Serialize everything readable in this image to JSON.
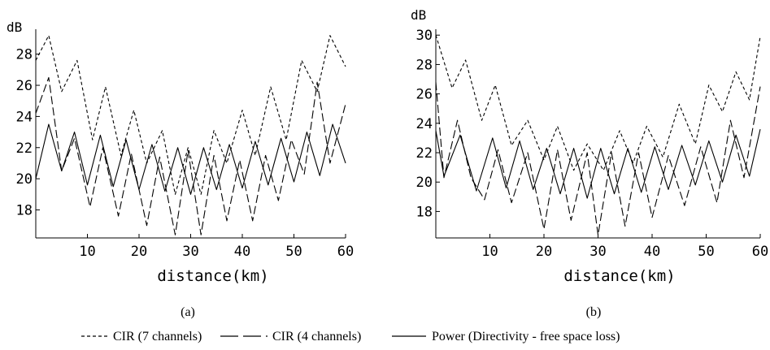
{
  "legend": [
    {
      "label": "CIR (7 channels)",
      "style": "dashed-short"
    },
    {
      "label": "CIR (4 channels)",
      "style": "dashed-long"
    },
    {
      "label": "Power  (Directivity - free space loss)",
      "style": "solid"
    }
  ],
  "chart_data": [
    {
      "type": "line",
      "panel_label": "(a)",
      "ylabel": "dB",
      "xlabel": "distance(km)",
      "xlim": [
        0,
        60
      ],
      "ylim": [
        16.2,
        29.6
      ],
      "xticks": [
        10,
        20,
        30,
        40,
        50,
        60
      ],
      "yticks": [
        18,
        20,
        22,
        24,
        26,
        28
      ],
      "series": [
        {
          "name": "CIR (7 channels)",
          "style": "dashed-short",
          "x": [
            0,
            2.5,
            5,
            8,
            11,
            13.5,
            16.5,
            19,
            21.5,
            24.5,
            27,
            29.5,
            32,
            34.5,
            37,
            40,
            42.5,
            45.5,
            48.5,
            51.5,
            54.5,
            57,
            60
          ],
          "y": [
            27.6,
            29.2,
            25.6,
            27.6,
            22.5,
            25.9,
            21.5,
            24.4,
            21.0,
            23.1,
            19.0,
            22.0,
            19.0,
            23.1,
            21.0,
            24.4,
            21.5,
            25.9,
            22.5,
            27.6,
            25.6,
            29.2,
            27.2
          ]
        },
        {
          "name": "CIR (4 channels)",
          "style": "dashed-long",
          "x": [
            0,
            2.5,
            5,
            7.5,
            10.5,
            13,
            16,
            18.5,
            21.5,
            24,
            27,
            29.5,
            32,
            34.5,
            37,
            39.5,
            42,
            44.5,
            47,
            49.5,
            52,
            54.5,
            57,
            60
          ],
          "y": [
            24.2,
            26.5,
            20.5,
            22.6,
            18.2,
            22.0,
            17.6,
            21.6,
            17.0,
            21.4,
            16.4,
            21.8,
            16.4,
            21.5,
            17.3,
            21.2,
            17.3,
            21.5,
            18.6,
            22.5,
            20.3,
            26.2,
            21.0,
            24.8
          ]
        },
        {
          "name": "Power  (Directivity - free space loss)",
          "style": "solid",
          "x": [
            0,
            2.5,
            5,
            7.5,
            10,
            12.5,
            15,
            17.5,
            20,
            22.5,
            25,
            27.5,
            30,
            32.5,
            35,
            37.5,
            40,
            42.5,
            45,
            47.5,
            50,
            52.5,
            55,
            57.5,
            60
          ],
          "y": [
            20.0,
            23.5,
            20.5,
            23.0,
            19.6,
            22.8,
            19.5,
            22.5,
            19.3,
            22.2,
            19.2,
            22.0,
            19.0,
            22.0,
            19.3,
            22.2,
            19.4,
            22.4,
            19.6,
            22.6,
            19.8,
            23.0,
            20.2,
            23.5,
            21.0
          ]
        }
      ]
    },
    {
      "type": "line",
      "panel_label": "(b)",
      "ylabel": "dB",
      "xlabel": "distance(km)",
      "xlim": [
        0,
        60
      ],
      "ylim": [
        16.2,
        30.4
      ],
      "xticks": [
        10,
        20,
        30,
        40,
        50,
        60
      ],
      "yticks": [
        18,
        20,
        22,
        24,
        26,
        28,
        30
      ],
      "series": [
        {
          "name": "CIR (7 channels)",
          "style": "dashed-short",
          "x": [
            0,
            3,
            5.5,
            8.5,
            11,
            14,
            17,
            20,
            22.5,
            25.5,
            28,
            31,
            34,
            36.5,
            39,
            42,
            45,
            48,
            50.5,
            53,
            55.5,
            58,
            60
          ],
          "y": [
            30.0,
            26.4,
            28.3,
            24.2,
            26.6,
            22.5,
            24.2,
            21.5,
            23.8,
            20.8,
            22.6,
            20.8,
            23.5,
            21.3,
            23.8,
            21.7,
            25.3,
            22.6,
            26.6,
            24.8,
            27.5,
            25.6,
            29.9
          ]
        },
        {
          "name": "CIR (4 channels)",
          "style": "dashed-long",
          "x": [
            0,
            1.5,
            4,
            6.5,
            9,
            11.5,
            14,
            17,
            20,
            22.5,
            25,
            28,
            30,
            32.5,
            35,
            37.5,
            40,
            43,
            46,
            49,
            52,
            54.5,
            57,
            60
          ],
          "y": [
            26.8,
            20.3,
            24.2,
            20.3,
            18.8,
            22.2,
            18.6,
            22.0,
            16.8,
            22.2,
            17.4,
            22.0,
            16.4,
            22.0,
            17.0,
            22.0,
            17.6,
            21.8,
            18.4,
            22.4,
            18.6,
            24.2,
            20.3,
            26.5
          ]
        },
        {
          "name": "Power  (Directivity - free space loss)",
          "style": "solid",
          "x": [
            0,
            1.5,
            4.5,
            7.5,
            10.5,
            13,
            15.5,
            18,
            20.5,
            23,
            25.5,
            28,
            30.5,
            33,
            35.5,
            38,
            40.5,
            43,
            45.5,
            48,
            50.5,
            53,
            55.5,
            58,
            60
          ],
          "y": [
            23.5,
            20.4,
            23.2,
            19.4,
            23.0,
            19.6,
            22.8,
            19.5,
            22.3,
            19.2,
            22.3,
            18.9,
            22.3,
            19.2,
            22.3,
            19.3,
            22.4,
            19.5,
            22.5,
            19.8,
            22.8,
            20.0,
            23.2,
            20.4,
            23.6
          ]
        }
      ]
    }
  ]
}
